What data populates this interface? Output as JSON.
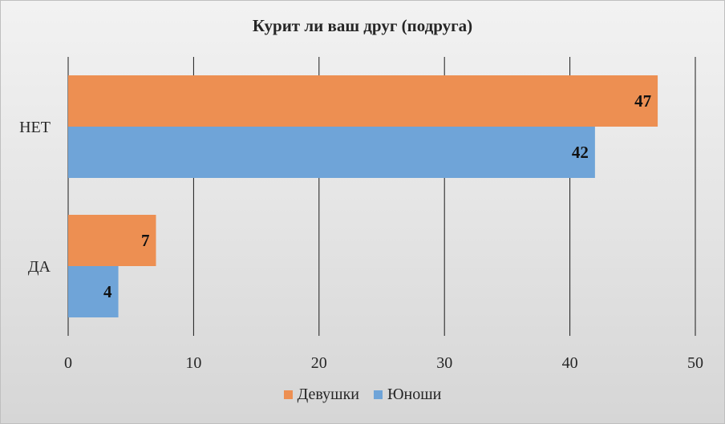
{
  "chart_data": {
    "type": "bar",
    "orientation": "horizontal",
    "title": "Курит ли ваш друг (подруга)",
    "categories": [
      "НЕТ",
      "ДА"
    ],
    "series": [
      {
        "name": "Девушки",
        "values": [
          47,
          7
        ],
        "color": "#ed8f52"
      },
      {
        "name": "Юноши",
        "values": [
          42,
          4
        ],
        "color": "#6fa4d8"
      }
    ],
    "xlim": [
      0,
      50
    ],
    "xticks": [
      "0",
      "10",
      "20",
      "30",
      "40",
      "50"
    ],
    "grid": "vertical",
    "legend_position": "bottom",
    "data_labels": true
  }
}
